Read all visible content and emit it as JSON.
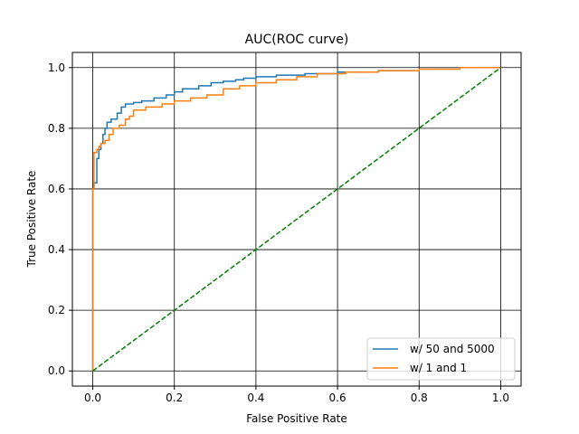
{
  "chart_data": {
    "type": "line",
    "title": "AUC(ROC curve)",
    "xlabel": "False Positive Rate",
    "ylabel": "True Positive Rate",
    "xlim": [
      -0.05,
      1.05
    ],
    "ylim": [
      -0.05,
      1.05
    ],
    "xticks": [
      "0.0",
      "0.2",
      "0.4",
      "0.6",
      "0.8",
      "1.0"
    ],
    "yticks": [
      "0.0",
      "0.2",
      "0.4",
      "0.6",
      "0.8",
      "1.0"
    ],
    "grid": true,
    "legend_position": "lower right",
    "series": [
      {
        "name": "w/ 50 and 5000",
        "color": "#1f77b4",
        "style": "solid",
        "x": [
          0.0,
          0.0,
          0.003,
          0.003,
          0.01,
          0.01,
          0.015,
          0.015,
          0.02,
          0.02,
          0.025,
          0.025,
          0.03,
          0.03,
          0.035,
          0.035,
          0.045,
          0.045,
          0.06,
          0.06,
          0.07,
          0.07,
          0.08,
          0.08,
          0.1,
          0.1,
          0.12,
          0.12,
          0.15,
          0.15,
          0.18,
          0.18,
          0.2,
          0.2,
          0.22,
          0.22,
          0.26,
          0.26,
          0.29,
          0.29,
          0.32,
          0.32,
          0.35,
          0.35,
          0.37,
          0.37,
          0.4,
          0.4,
          0.45,
          0.45,
          0.52,
          0.52,
          0.6,
          0.6,
          0.7,
          0.7,
          0.79
        ],
        "y": [
          0.0,
          0.6,
          0.6,
          0.62,
          0.62,
          0.7,
          0.7,
          0.73,
          0.73,
          0.75,
          0.75,
          0.78,
          0.78,
          0.8,
          0.8,
          0.82,
          0.82,
          0.83,
          0.83,
          0.85,
          0.85,
          0.87,
          0.87,
          0.88,
          0.88,
          0.885,
          0.885,
          0.89,
          0.89,
          0.9,
          0.9,
          0.91,
          0.91,
          0.92,
          0.92,
          0.93,
          0.93,
          0.94,
          0.94,
          0.95,
          0.95,
          0.955,
          0.955,
          0.96,
          0.96,
          0.965,
          0.965,
          0.97,
          0.97,
          0.975,
          0.975,
          0.98,
          0.98,
          0.985,
          0.985,
          0.99,
          0.99
        ]
      },
      {
        "name": "w/ 1 and 1",
        "color": "#ff7f0e",
        "style": "solid",
        "x": [
          0.0,
          0.0,
          0.003,
          0.003,
          0.01,
          0.01,
          0.015,
          0.015,
          0.02,
          0.02,
          0.03,
          0.03,
          0.04,
          0.04,
          0.05,
          0.05,
          0.065,
          0.065,
          0.08,
          0.08,
          0.09,
          0.09,
          0.1,
          0.1,
          0.13,
          0.13,
          0.17,
          0.17,
          0.2,
          0.2,
          0.24,
          0.24,
          0.28,
          0.28,
          0.32,
          0.32,
          0.36,
          0.36,
          0.4,
          0.4,
          0.45,
          0.45,
          0.5,
          0.5,
          0.55,
          0.55,
          0.62,
          0.62,
          0.7,
          0.7,
          0.8,
          0.8,
          0.9,
          0.9,
          1.0
        ],
        "y": [
          0.0,
          0.6,
          0.6,
          0.72,
          0.72,
          0.73,
          0.73,
          0.74,
          0.74,
          0.75,
          0.75,
          0.76,
          0.76,
          0.78,
          0.78,
          0.8,
          0.8,
          0.81,
          0.81,
          0.83,
          0.83,
          0.84,
          0.84,
          0.86,
          0.86,
          0.87,
          0.87,
          0.88,
          0.88,
          0.89,
          0.89,
          0.9,
          0.9,
          0.91,
          0.91,
          0.93,
          0.93,
          0.94,
          0.94,
          0.95,
          0.95,
          0.96,
          0.96,
          0.97,
          0.97,
          0.98,
          0.98,
          0.985,
          0.985,
          0.99,
          0.99,
          0.995,
          0.995,
          1.0,
          1.0
        ]
      },
      {
        "name": "",
        "color": "#008000",
        "style": "dashed",
        "x": [
          0.0,
          1.0
        ],
        "y": [
          0.0,
          1.0
        ]
      }
    ],
    "legend": [
      "w/ 50 and 5000",
      "w/ 1 and 1"
    ]
  }
}
